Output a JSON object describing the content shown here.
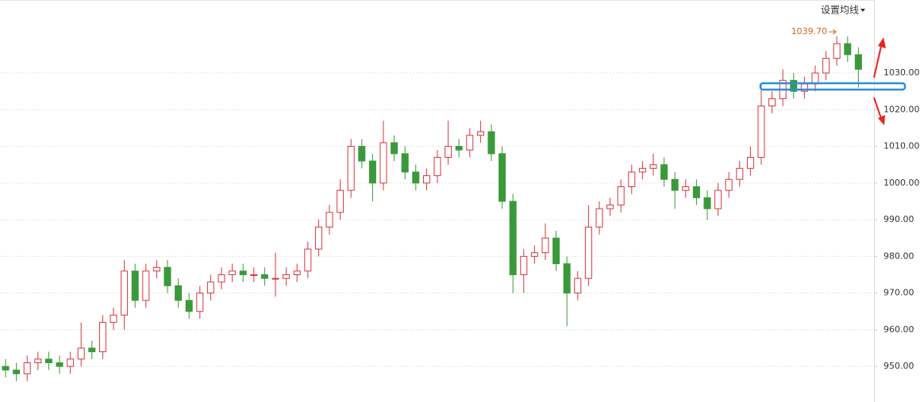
{
  "chart_data": {
    "type": "candlestick",
    "button": "设置均线",
    "annotation": {
      "value": 1039.7,
      "label": "1039.70"
    },
    "up_color": "#d9363e",
    "down_color": "#3a9a3a",
    "grid": true,
    "open": [
      950,
      949,
      948,
      951,
      952,
      951,
      950,
      952,
      955,
      954,
      962,
      964,
      976,
      968,
      976,
      977,
      972,
      968,
      965,
      970,
      973,
      975,
      976,
      975,
      975,
      974,
      974,
      975,
      976,
      982,
      988,
      992,
      998,
      1010,
      1006,
      1000,
      1011,
      1008,
      1003,
      1000,
      1002,
      1007,
      1010,
      1009,
      1013,
      1014,
      1008,
      995,
      975,
      980,
      981,
      985,
      978,
      970,
      974,
      988,
      993,
      994,
      999,
      1003,
      1004,
      1005,
      1001,
      998,
      999,
      996,
      993,
      998,
      1001,
      1004,
      1007,
      1021,
      1023,
      1028,
      1025,
      1027,
      1030,
      1034,
      1038,
      1035
    ],
    "high": [
      952,
      951,
      953,
      954,
      954,
      953,
      954,
      962,
      957,
      964,
      966,
      979,
      978,
      978,
      979,
      979,
      974,
      970,
      972,
      975,
      977,
      978,
      978,
      977,
      977,
      981,
      977,
      978,
      984,
      990,
      994,
      1001,
      1012,
      1012,
      1008,
      1017,
      1013,
      1010,
      1005,
      1004,
      1009,
      1017,
      1012,
      1015,
      1017,
      1016,
      1010,
      997,
      982,
      983,
      989,
      987,
      980,
      976,
      994,
      995,
      996,
      1001,
      1005,
      1006,
      1008,
      1007,
      1003,
      1001,
      1001,
      998,
      1000,
      1003,
      1006,
      1010,
      1027,
      1025,
      1031,
      1030,
      1029,
      1032,
      1036,
      1040,
      1040,
      1037
    ],
    "low": [
      947,
      946,
      946,
      949,
      949,
      948,
      948,
      950,
      952,
      952,
      960,
      960,
      966,
      966,
      974,
      970,
      966,
      963,
      963,
      968,
      971,
      973,
      973,
      973,
      972,
      969,
      972,
      973,
      974,
      980,
      986,
      990,
      996,
      1004,
      995,
      998,
      1006,
      1001,
      998,
      998,
      1000,
      1005,
      1007,
      1007,
      1011,
      1006,
      993,
      970,
      970,
      978,
      979,
      976,
      961,
      968,
      972,
      986,
      991,
      992,
      997,
      1001,
      1002,
      999,
      993,
      996,
      994,
      990,
      991,
      996,
      999,
      1002,
      1005,
      1019,
      1021,
      1023,
      1023,
      1025,
      1028,
      1032,
      1033,
      1026
    ],
    "close": [
      949,
      948,
      951,
      952,
      951,
      950,
      952,
      955,
      954,
      962,
      964,
      976,
      968,
      976,
      977,
      972,
      968,
      965,
      970,
      973,
      975,
      976,
      975,
      975,
      974,
      974,
      975,
      976,
      982,
      988,
      992,
      998,
      1010,
      1006,
      1000,
      1011,
      1008,
      1003,
      1000,
      1002,
      1007,
      1010,
      1009,
      1013,
      1014,
      1008,
      995,
      975,
      980,
      981,
      985,
      978,
      970,
      974,
      988,
      993,
      994,
      999,
      1003,
      1004,
      1005,
      1001,
      998,
      999,
      996,
      993,
      998,
      1001,
      1004,
      1007,
      1021,
      1023,
      1028,
      1025,
      1027,
      1030,
      1034,
      1038,
      1035,
      1031
    ],
    "ylim": [
      940.3,
      1049.9
    ],
    "yticks": [
      {
        "value": 950,
        "label": "950.00"
      },
      {
        "value": 960,
        "label": "960.00"
      },
      {
        "value": 970,
        "label": "970.00"
      },
      {
        "value": 980,
        "label": "980.00"
      },
      {
        "value": 990,
        "label": "990.00"
      },
      {
        "value": 1000,
        "label": "1000.00"
      },
      {
        "value": 1010,
        "label": "1010.00"
      },
      {
        "value": 1020,
        "label": "1020.00"
      },
      {
        "value": 1030,
        "label": "1030.00"
      }
    ]
  }
}
